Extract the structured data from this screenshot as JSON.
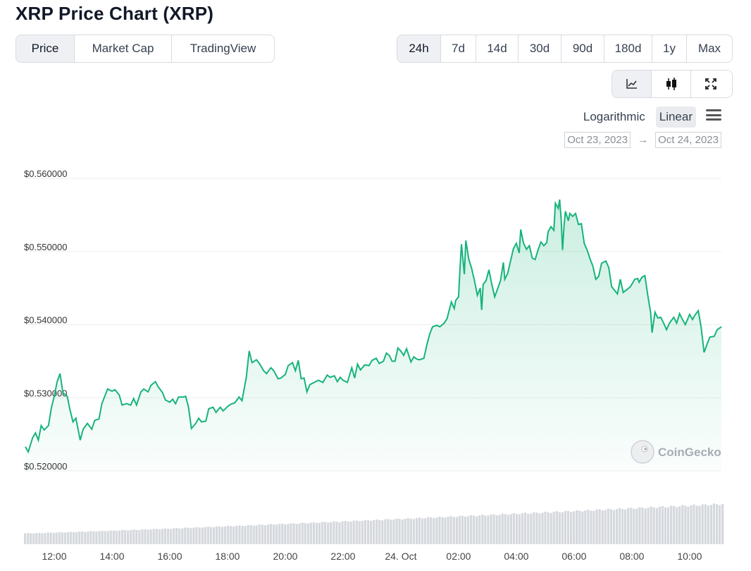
{
  "page_title": "XRP Price Chart (XRP)",
  "tabs": [
    {
      "label": "Price",
      "active": true
    },
    {
      "label": "Market Cap",
      "active": false
    },
    {
      "label": "TradingView",
      "active": false
    }
  ],
  "ranges": [
    {
      "label": "24h",
      "active": true
    },
    {
      "label": "7d",
      "active": false
    },
    {
      "label": "14d",
      "active": false
    },
    {
      "label": "30d",
      "active": false
    },
    {
      "label": "90d",
      "active": false
    },
    {
      "label": "180d",
      "active": false
    },
    {
      "label": "1y",
      "active": false
    },
    {
      "label": "Max",
      "active": false
    }
  ],
  "view_buttons": [
    {
      "icon": "line-chart-icon",
      "active": true
    },
    {
      "icon": "candlestick-icon",
      "active": false
    },
    {
      "icon": "fullscreen-icon",
      "active": false
    }
  ],
  "scale": {
    "logarithmic": "Logarithmic",
    "linear": "Linear",
    "selected": "Linear"
  },
  "date_range": {
    "from": "Oct 23, 2023",
    "arrow": "→",
    "to": "Oct 24, 2023"
  },
  "watermark": "CoinGecko",
  "colors": {
    "line": "#16b47a",
    "fill": "#16b47a",
    "volume": "#d5d8dd",
    "grid": "#eceef1"
  },
  "chart_data": {
    "type": "line",
    "y_tick_labels": [
      "$0.520000",
      "$0.530000",
      "$0.540000",
      "$0.550000",
      "$0.560000"
    ],
    "y_ticks": [
      0.52,
      0.53,
      0.54,
      0.55,
      0.56
    ],
    "ylim": [
      0.52,
      0.56
    ],
    "x_tick_labels": [
      "12:00",
      "14:00",
      "16:00",
      "18:00",
      "20:00",
      "22:00",
      "24. Oct",
      "02:00",
      "04:00",
      "06:00",
      "08:00",
      "10:00"
    ],
    "x_ticks": [
      12,
      14,
      16,
      18,
      20,
      22,
      24,
      26,
      28,
      30,
      32,
      34
    ],
    "xlim": [
      11.0,
      35.1
    ],
    "x_unit": "hours since Oct 23, 2023 00:00",
    "series": [
      {
        "kind": "price",
        "points": [
          [
            11.0,
            0.5233
          ],
          [
            11.1,
            0.5226
          ],
          [
            11.25,
            0.5245
          ],
          [
            11.35,
            0.5252
          ],
          [
            11.45,
            0.5242
          ],
          [
            11.55,
            0.5262
          ],
          [
            11.65,
            0.5256
          ],
          [
            11.8,
            0.5262
          ],
          [
            11.9,
            0.5286
          ],
          [
            12.0,
            0.5302
          ],
          [
            12.1,
            0.5322
          ],
          [
            12.2,
            0.5333
          ],
          [
            12.3,
            0.5307
          ],
          [
            12.45,
            0.5302
          ],
          [
            12.55,
            0.5283
          ],
          [
            12.65,
            0.5267
          ],
          [
            12.75,
            0.5272
          ],
          [
            12.9,
            0.5242
          ],
          [
            13.0,
            0.5257
          ],
          [
            13.15,
            0.5265
          ],
          [
            13.3,
            0.5257
          ],
          [
            13.4,
            0.5269
          ],
          [
            13.55,
            0.5271
          ],
          [
            13.65,
            0.5292
          ],
          [
            13.75,
            0.5302
          ],
          [
            13.85,
            0.5312
          ],
          [
            14.0,
            0.5309
          ],
          [
            14.1,
            0.5311
          ],
          [
            14.25,
            0.5304
          ],
          [
            14.35,
            0.529
          ],
          [
            14.5,
            0.5292
          ],
          [
            14.65,
            0.529
          ],
          [
            14.75,
            0.5299
          ],
          [
            14.85,
            0.529
          ],
          [
            15.0,
            0.5308
          ],
          [
            15.1,
            0.5312
          ],
          [
            15.25,
            0.5308
          ],
          [
            15.35,
            0.5317
          ],
          [
            15.5,
            0.5322
          ],
          [
            15.6,
            0.5315
          ],
          [
            15.75,
            0.5307
          ],
          [
            15.85,
            0.5297
          ],
          [
            16.0,
            0.5294
          ],
          [
            16.1,
            0.5298
          ],
          [
            16.2,
            0.5292
          ],
          [
            16.3,
            0.5301
          ],
          [
            16.45,
            0.5301
          ],
          [
            16.55,
            0.5302
          ],
          [
            16.65,
            0.5287
          ],
          [
            16.75,
            0.5258
          ],
          [
            16.9,
            0.5265
          ],
          [
            17.0,
            0.5272
          ],
          [
            17.1,
            0.5267
          ],
          [
            17.25,
            0.5268
          ],
          [
            17.35,
            0.5285
          ],
          [
            17.5,
            0.5287
          ],
          [
            17.6,
            0.528
          ],
          [
            17.75,
            0.5287
          ],
          [
            17.85,
            0.5282
          ],
          [
            18.0,
            0.5288
          ],
          [
            18.1,
            0.5291
          ],
          [
            18.25,
            0.5293
          ],
          [
            18.4,
            0.5301
          ],
          [
            18.5,
            0.5296
          ],
          [
            18.65,
            0.5328
          ],
          [
            18.75,
            0.5364
          ],
          [
            18.85,
            0.5348
          ],
          [
            19.0,
            0.5352
          ],
          [
            19.1,
            0.5347
          ],
          [
            19.25,
            0.5337
          ],
          [
            19.35,
            0.5333
          ],
          [
            19.5,
            0.5341
          ],
          [
            19.6,
            0.5337
          ],
          [
            19.75,
            0.5326
          ],
          [
            19.85,
            0.5327
          ],
          [
            20.0,
            0.5332
          ],
          [
            20.1,
            0.5344
          ],
          [
            20.25,
            0.5348
          ],
          [
            20.35,
            0.5337
          ],
          [
            20.45,
            0.5351
          ],
          [
            20.55,
            0.5326
          ],
          [
            20.65,
            0.5327
          ],
          [
            20.75,
            0.5308
          ],
          [
            20.85,
            0.5318
          ],
          [
            21.0,
            0.5321
          ],
          [
            21.15,
            0.5324
          ],
          [
            21.3,
            0.5321
          ],
          [
            21.45,
            0.5331
          ],
          [
            21.55,
            0.5328
          ],
          [
            21.7,
            0.533
          ],
          [
            21.8,
            0.5322
          ],
          [
            21.9,
            0.5328
          ],
          [
            22.0,
            0.5324
          ],
          [
            22.15,
            0.5321
          ],
          [
            22.3,
            0.5341
          ],
          [
            22.4,
            0.5327
          ],
          [
            22.5,
            0.5346
          ],
          [
            22.6,
            0.5338
          ],
          [
            22.75,
            0.5345
          ],
          [
            22.9,
            0.5344
          ],
          [
            23.0,
            0.5351
          ],
          [
            23.15,
            0.5354
          ],
          [
            23.25,
            0.5347
          ],
          [
            23.4,
            0.535
          ],
          [
            23.5,
            0.5361
          ],
          [
            23.6,
            0.5358
          ],
          [
            23.7,
            0.535
          ],
          [
            23.8,
            0.535
          ],
          [
            23.9,
            0.5368
          ],
          [
            24.0,
            0.5364
          ],
          [
            24.1,
            0.5358
          ],
          [
            24.2,
            0.5367
          ],
          [
            24.35,
            0.5349
          ],
          [
            24.45,
            0.5356
          ],
          [
            24.55,
            0.5353
          ],
          [
            24.65,
            0.5352
          ],
          [
            24.8,
            0.5354
          ],
          [
            24.9,
            0.5372
          ],
          [
            25.0,
            0.5387
          ],
          [
            25.1,
            0.5397
          ],
          [
            25.25,
            0.5399
          ],
          [
            25.35,
            0.5397
          ],
          [
            25.5,
            0.5402
          ],
          [
            25.6,
            0.5408
          ],
          [
            25.75,
            0.5431
          ],
          [
            25.85,
            0.5422
          ],
          [
            25.9,
            0.5433
          ],
          [
            26.0,
            0.5438
          ],
          [
            26.05,
            0.5478
          ],
          [
            26.1,
            0.551
          ],
          [
            26.2,
            0.5469
          ],
          [
            26.25,
            0.5515
          ],
          [
            26.35,
            0.549
          ],
          [
            26.45,
            0.5477
          ],
          [
            26.55,
            0.546
          ],
          [
            26.65,
            0.544
          ],
          [
            26.75,
            0.545
          ],
          [
            26.8,
            0.542
          ],
          [
            26.85,
            0.5455
          ],
          [
            26.95,
            0.546
          ],
          [
            27.05,
            0.5475
          ],
          [
            27.15,
            0.5455
          ],
          [
            27.25,
            0.5438
          ],
          [
            27.35,
            0.5449
          ],
          [
            27.45,
            0.546
          ],
          [
            27.55,
            0.5485
          ],
          [
            27.6,
            0.5462
          ],
          [
            27.7,
            0.547
          ],
          [
            27.8,
            0.5487
          ],
          [
            27.9,
            0.5504
          ],
          [
            28.0,
            0.5511
          ],
          [
            28.1,
            0.5498
          ],
          [
            28.15,
            0.553
          ],
          [
            28.25,
            0.5511
          ],
          [
            28.35,
            0.5503
          ],
          [
            28.45,
            0.5508
          ],
          [
            28.55,
            0.5491
          ],
          [
            28.65,
            0.5489
          ],
          [
            28.75,
            0.5502
          ],
          [
            28.85,
            0.5513
          ],
          [
            28.95,
            0.5508
          ],
          [
            29.05,
            0.5512
          ],
          [
            29.1,
            0.5527
          ],
          [
            29.2,
            0.5534
          ],
          [
            29.3,
            0.5529
          ],
          [
            29.35,
            0.5566
          ],
          [
            29.45,
            0.5559
          ],
          [
            29.5,
            0.5571
          ],
          [
            29.55,
            0.5545
          ],
          [
            29.6,
            0.5502
          ],
          [
            29.65,
            0.5535
          ],
          [
            29.7,
            0.5555
          ],
          [
            29.8,
            0.5542
          ],
          [
            29.85,
            0.5552
          ],
          [
            29.95,
            0.5548
          ],
          [
            30.05,
            0.5552
          ],
          [
            30.15,
            0.5537
          ],
          [
            30.25,
            0.5538
          ],
          [
            30.35,
            0.5511
          ],
          [
            30.45,
            0.5502
          ],
          [
            30.55,
            0.549
          ],
          [
            30.65,
            0.548
          ],
          [
            30.75,
            0.5462
          ],
          [
            30.85,
            0.5466
          ],
          [
            30.95,
            0.5484
          ],
          [
            31.1,
            0.5487
          ],
          [
            31.2,
            0.5478
          ],
          [
            31.3,
            0.5452
          ],
          [
            31.4,
            0.5447
          ],
          [
            31.5,
            0.5442
          ],
          [
            31.6,
            0.5462
          ],
          [
            31.7,
            0.5444
          ],
          [
            31.8,
            0.5447
          ],
          [
            31.95,
            0.5452
          ],
          [
            32.1,
            0.5462
          ],
          [
            32.2,
            0.5463
          ],
          [
            32.25,
            0.5458
          ],
          [
            32.35,
            0.5465
          ],
          [
            32.45,
            0.5467
          ],
          [
            32.55,
            0.544
          ],
          [
            32.65,
            0.5416
          ],
          [
            32.7,
            0.5389
          ],
          [
            32.8,
            0.5417
          ],
          [
            32.9,
            0.5409
          ],
          [
            33.0,
            0.541
          ],
          [
            33.1,
            0.5402
          ],
          [
            33.2,
            0.5393
          ],
          [
            33.3,
            0.5402
          ],
          [
            33.45,
            0.541
          ],
          [
            33.55,
            0.5402
          ],
          [
            33.65,
            0.5415
          ],
          [
            33.75,
            0.5407
          ],
          [
            33.85,
            0.54
          ],
          [
            34.0,
            0.5414
          ],
          [
            34.1,
            0.5407
          ],
          [
            34.2,
            0.5414
          ],
          [
            34.3,
            0.5419
          ],
          [
            34.4,
            0.5396
          ],
          [
            34.5,
            0.5362
          ],
          [
            34.6,
            0.5373
          ],
          [
            34.7,
            0.5383
          ],
          [
            34.85,
            0.5384
          ],
          [
            34.95,
            0.5393
          ],
          [
            35.1,
            0.5397
          ]
        ]
      }
    ],
    "volume_trend": {
      "start": 0.27,
      "end": 1.0,
      "note": "relative volume bars, unlabeled"
    }
  }
}
